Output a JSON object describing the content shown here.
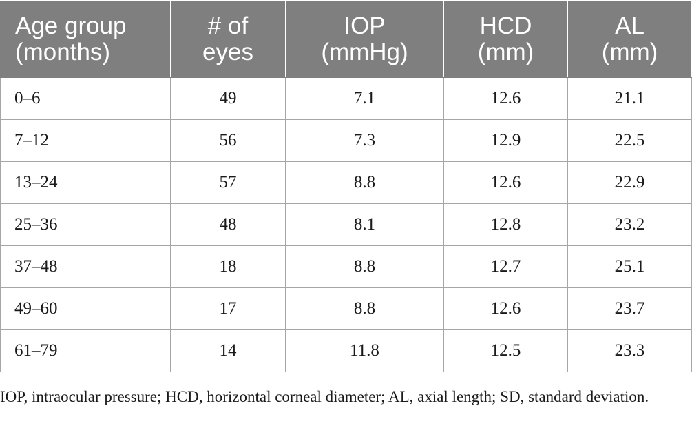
{
  "table": {
    "headers": [
      {
        "line1": "Age group",
        "line2": "(months)"
      },
      {
        "line1": "# of",
        "line2": "eyes"
      },
      {
        "line1": "IOP",
        "line2": "(mmHg)"
      },
      {
        "line1": "HCD",
        "line2": "(mm)"
      },
      {
        "line1": "AL",
        "line2": "(mm)"
      }
    ],
    "rows": [
      [
        "0–6",
        "49",
        "7.1",
        "12.6",
        "21.1"
      ],
      [
        "7–12",
        "56",
        "7.3",
        "12.9",
        "22.5"
      ],
      [
        "13–24",
        "57",
        "8.8",
        "12.6",
        "22.9"
      ],
      [
        "25–36",
        "48",
        "8.1",
        "12.8",
        "23.2"
      ],
      [
        "37–48",
        "18",
        "8.8",
        "12.7",
        "25.1"
      ],
      [
        "49–60",
        "17",
        "8.8",
        "12.6",
        "23.7"
      ],
      [
        "61–79",
        "14",
        "11.8",
        "12.5",
        "23.3"
      ]
    ],
    "header_bg": "#7f7f7f",
    "header_text_color": "#ffffff",
    "border_color": "#a6a6a6"
  },
  "footnote": "IOP, intraocular pressure; HCD, horizontal corneal diameter; AL, axial length; SD, standard deviation."
}
